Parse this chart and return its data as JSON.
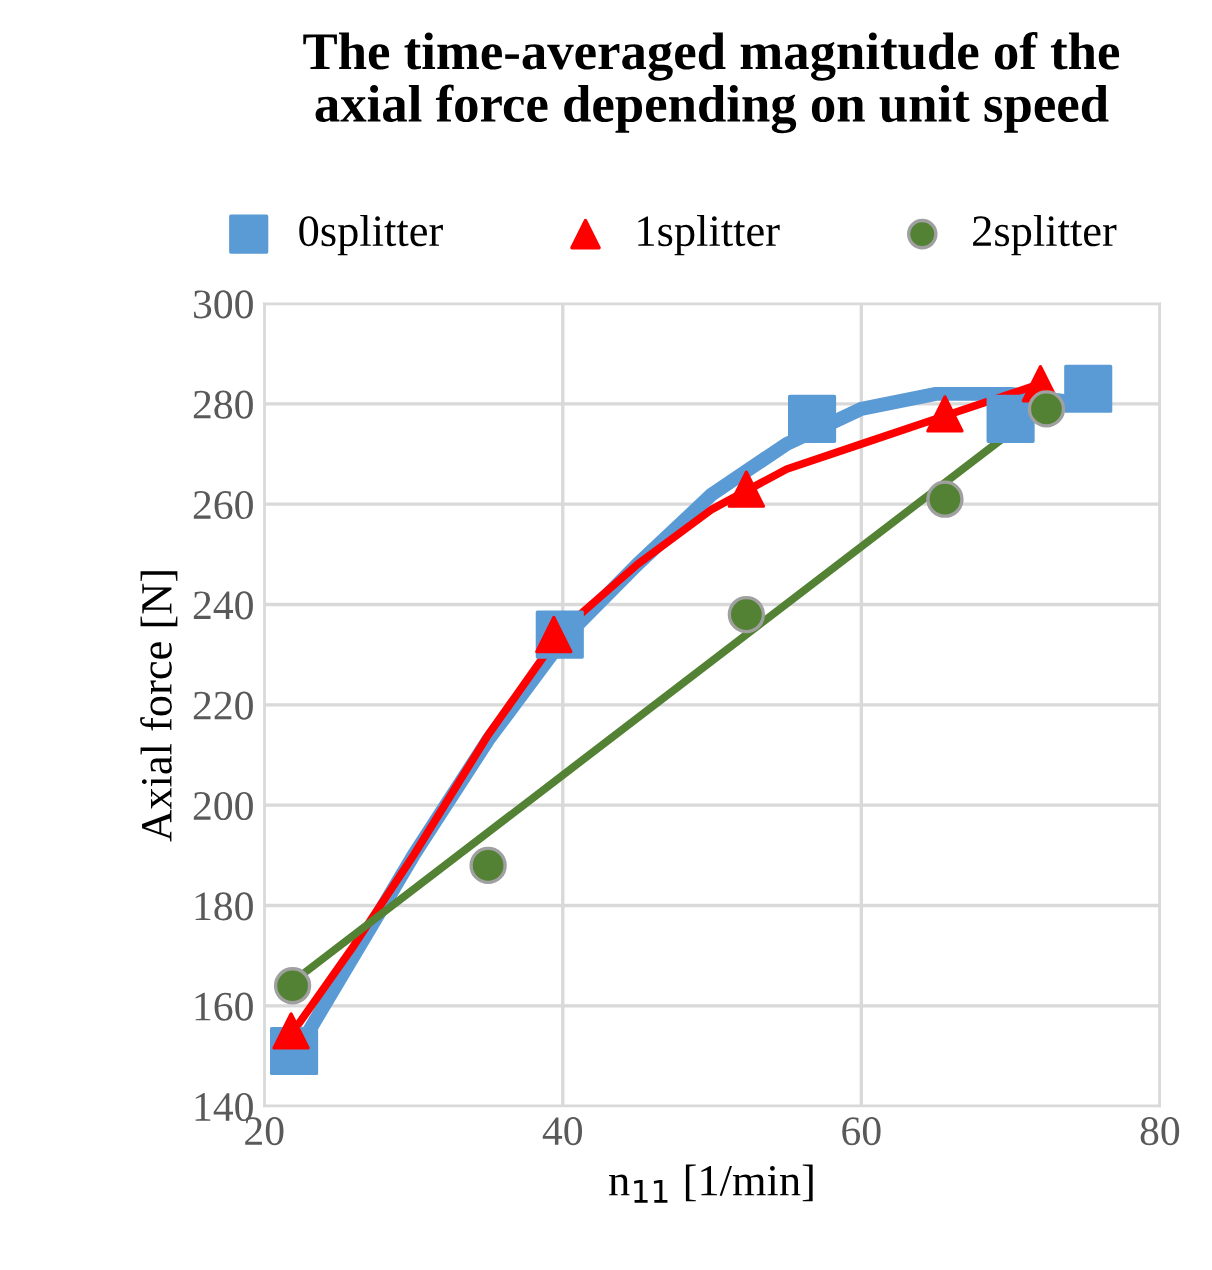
{
  "chart_data": {
    "type": "scatter",
    "title": "The time-averaged magnitude of the\naxial force depending on unit speed",
    "xlabel": "n$_{11}$ [1/min]",
    "ylabel": "Axial force [N]",
    "xlim": [
      20,
      80
    ],
    "xticks": [
      20,
      40,
      60,
      80
    ],
    "ylim": [
      140,
      300
    ],
    "yticks": [
      140,
      160,
      180,
      200,
      220,
      240,
      260,
      280,
      300
    ],
    "grid": true,
    "legend": "top",
    "series": [
      {
        "name": "0splitter",
        "color": "#5b9bd5",
        "marker": "square",
        "x": [
          22.0,
          39.8,
          56.7,
          70.0,
          75.2
        ],
        "values": [
          151,
          234,
          277,
          277,
          283
        ]
      },
      {
        "name": "1splitter",
        "color": "#ff0000",
        "marker": "triangle",
        "x": [
          21.8,
          39.4,
          52.3,
          65.6,
          72.0
        ],
        "values": [
          155,
          234,
          263,
          278,
          284
        ]
      },
      {
        "name": "2splitter",
        "color": "#548235",
        "marker": "circle",
        "x": [
          21.9,
          35.0,
          52.3,
          65.6,
          72.4
        ],
        "values": [
          164,
          188,
          238,
          261,
          279
        ]
      },
      {
        "type": "line",
        "color": "#5b9bd5",
        "x": [
          22,
          26,
          30,
          35,
          40,
          45,
          50,
          55,
          60,
          65,
          70,
          75
        ],
        "values": [
          150,
          170,
          190,
          213,
          233,
          248,
          262,
          272,
          279,
          282,
          282,
          280
        ]
      },
      {
        "type": "line",
        "color": "#ff0000",
        "x": [
          21.5,
          26,
          30,
          35,
          40,
          45,
          50,
          55,
          60,
          65,
          72
        ],
        "values": [
          153,
          172,
          190,
          214,
          235,
          248,
          259,
          267,
          272,
          277,
          284
        ]
      },
      {
        "type": "line",
        "color": "#548235",
        "x": [
          22,
          72.5
        ],
        "values": [
          165,
          280
        ]
      }
    ]
  }
}
